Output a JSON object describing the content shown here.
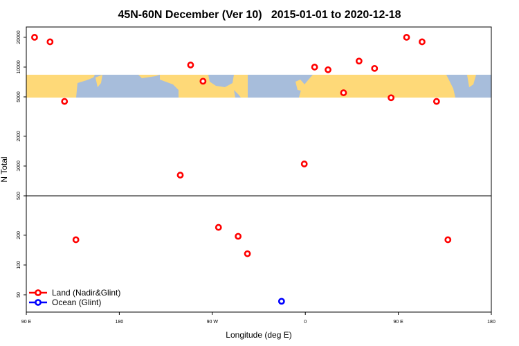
{
  "chart_data": {
    "type": "scatter",
    "title": "45N-60N December (Ver 10)   2015-01-01 to 2020-12-18",
    "xlabel": "Longitude (deg E)",
    "ylabel": "N Total",
    "x_ticks": [
      {
        "lon": 90,
        "label": "90 E"
      },
      {
        "lon": 180,
        "label": "180"
      },
      {
        "lon": 270,
        "label": "90 W"
      },
      {
        "lon": 360,
        "label": "0"
      },
      {
        "lon": 450,
        "label": "90 E"
      },
      {
        "lon": 540,
        "label": "180"
      }
    ],
    "xlim_description": "90 E eastward through 180, 0, 90 E to 180 (wrapping, 450 degrees)",
    "y_scale": "log",
    "y_ticks": [
      50,
      100,
      200,
      500,
      1000,
      2000,
      5000,
      10000,
      20000
    ],
    "y_split_value": 500,
    "grid": false,
    "legend_position": "bottom-left",
    "map_strip": {
      "lat_range": "45N-60N",
      "land_color": "#FED978",
      "ocean_color": "#A7BDDB",
      "between_values": [
        5000,
        8000
      ]
    },
    "series": [
      {
        "name": "Land (Nadir&Glint)",
        "color": "#FF0000",
        "points": [
          {
            "lon": 98,
            "n": 20000
          },
          {
            "lon": 113,
            "n": 18000
          },
          {
            "lon": 127,
            "n": 4500
          },
          {
            "lon": 138,
            "n": 180
          },
          {
            "lon": -121,
            "n": 810
          },
          {
            "lon": -111,
            "n": 10500
          },
          {
            "lon": -99,
            "n": 7200
          },
          {
            "lon": -84,
            "n": 240
          },
          {
            "lon": -65,
            "n": 195
          },
          {
            "lon": -56,
            "n": 130
          },
          {
            "lon": -1,
            "n": 1050
          },
          {
            "lon": 9,
            "n": 10000
          },
          {
            "lon": 22,
            "n": 9400
          },
          {
            "lon": 37,
            "n": 5500
          },
          {
            "lon": 52,
            "n": 11500
          },
          {
            "lon": 67,
            "n": 9700
          },
          {
            "lon": 83,
            "n": 4900
          }
        ]
      },
      {
        "name": "Ocean (Glint)",
        "color": "#0000FF",
        "points": [
          {
            "lon": -23,
            "n": 43
          }
        ]
      }
    ]
  }
}
